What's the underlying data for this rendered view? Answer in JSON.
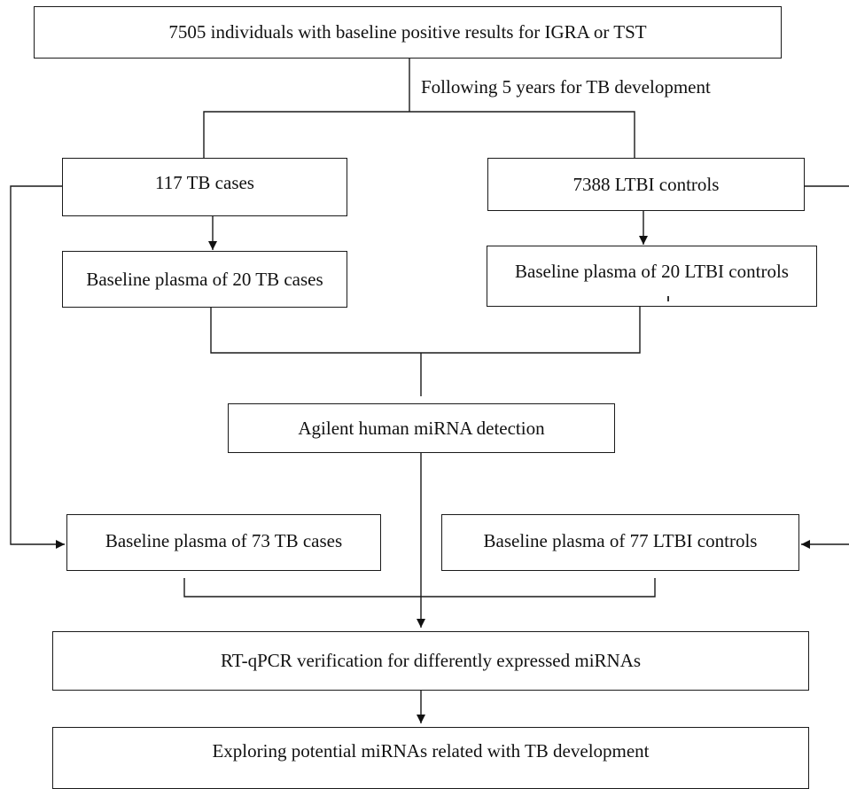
{
  "boxes": {
    "baseline_positive": "7505 individuals with baseline positive results for IGRA or TST",
    "tb_cases": "117 TB cases",
    "ltbi_controls": "7388 LTBI controls",
    "plasma_20_tb": "Baseline plasma of 20 TB cases",
    "plasma_20_ltbi": "Baseline plasma of 20 LTBI controls",
    "mirna_detection": "Agilent human miRNA detection",
    "plasma_73_tb": "Baseline plasma of 73 TB cases",
    "plasma_77_ltbi": "Baseline plasma of 77 LTBI controls",
    "rtqpcr": "RT-qPCR verification for differently expressed miRNAs",
    "exploring": "Exploring potential miRNAs related with TB development"
  },
  "annotations": {
    "followup": "Following 5 years for TB development"
  }
}
